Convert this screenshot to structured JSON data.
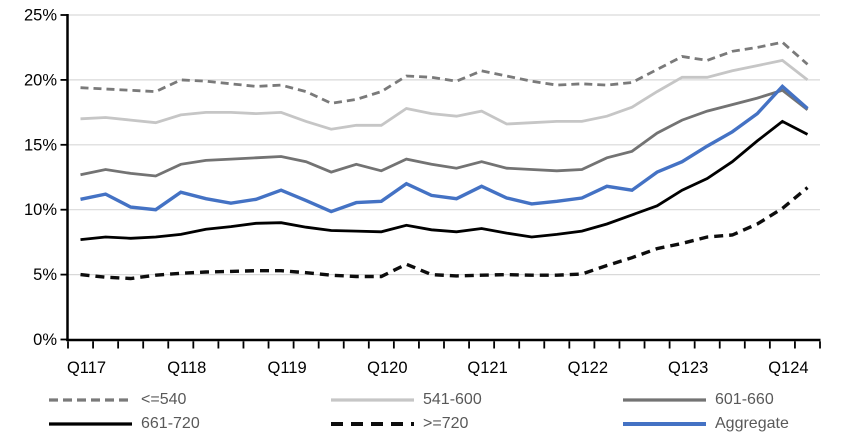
{
  "chart_data": {
    "type": "line",
    "title": "",
    "xlabel": "",
    "ylabel": "",
    "ylim": [
      0,
      25
    ],
    "grid": "horizontal",
    "legend_position": "bottom",
    "y_ticks": [
      "0%",
      "5%",
      "10%",
      "15%",
      "20%",
      "25%"
    ],
    "x_axis_labels": [
      "Q117",
      "Q118",
      "Q119",
      "Q120",
      "Q121",
      "Q122",
      "Q123",
      "Q124"
    ],
    "categories": [
      "Q117",
      "Q217",
      "Q317",
      "Q417",
      "Q118",
      "Q218",
      "Q318",
      "Q418",
      "Q119",
      "Q219",
      "Q319",
      "Q419",
      "Q120",
      "Q220",
      "Q320",
      "Q420",
      "Q121",
      "Q221",
      "Q321",
      "Q421",
      "Q122",
      "Q222",
      "Q322",
      "Q422",
      "Q123",
      "Q223",
      "Q323",
      "Q423",
      "Q124",
      "Q224"
    ],
    "series": [
      {
        "name": "<=540",
        "color": "#7a7a7a",
        "dash": "8 5",
        "width": 2.8,
        "legend_dash": "9 5",
        "values": [
          19.4,
          19.3,
          19.2,
          19.1,
          20.0,
          19.9,
          19.7,
          19.5,
          19.6,
          19.1,
          18.2,
          18.5,
          19.1,
          20.3,
          20.2,
          19.9,
          20.7,
          20.3,
          19.9,
          19.6,
          19.7,
          19.6,
          19.8,
          20.8,
          21.8,
          21.5,
          22.2,
          22.5,
          22.9,
          21.2
        ]
      },
      {
        "name": "541-600",
        "color": "#c6c6c6",
        "dash": "",
        "width": 2.8,
        "legend_dash": "",
        "values": [
          17.0,
          17.1,
          16.9,
          16.7,
          17.3,
          17.5,
          17.5,
          17.4,
          17.5,
          16.8,
          16.2,
          16.5,
          16.5,
          17.8,
          17.4,
          17.2,
          17.6,
          16.6,
          16.7,
          16.8,
          16.8,
          17.2,
          17.9,
          19.1,
          20.2,
          20.2,
          20.7,
          21.1,
          21.5,
          20.0
        ]
      },
      {
        "name": "601-660",
        "color": "#737373",
        "dash": "",
        "width": 2.8,
        "legend_dash": "",
        "values": [
          12.7,
          13.1,
          12.8,
          12.6,
          13.5,
          13.8,
          13.9,
          14.0,
          14.1,
          13.7,
          12.9,
          13.5,
          13.0,
          13.9,
          13.5,
          13.2,
          13.7,
          13.2,
          13.1,
          13.0,
          13.1,
          14.0,
          14.5,
          15.9,
          16.9,
          17.6,
          18.1,
          18.6,
          19.2,
          17.7
        ]
      },
      {
        "name": "661-720",
        "color": "#000000",
        "dash": "",
        "width": 2.8,
        "legend_dash": "",
        "values": [
          7.7,
          7.9,
          7.8,
          7.9,
          8.1,
          8.5,
          8.7,
          8.95,
          9.0,
          8.65,
          8.4,
          8.35,
          8.3,
          8.8,
          8.45,
          8.3,
          8.55,
          8.2,
          7.9,
          8.1,
          8.35,
          8.9,
          9.6,
          10.3,
          11.5,
          12.4,
          13.7,
          15.3,
          16.8,
          15.8
        ]
      },
      {
        "name": ">=720",
        "color": "#0d0d0d",
        "dash": "9 6",
        "width": 3.4,
        "legend_dash": "12 8",
        "values": [
          5.0,
          4.8,
          4.7,
          4.95,
          5.1,
          5.2,
          5.25,
          5.3,
          5.3,
          5.15,
          4.95,
          4.85,
          4.85,
          5.8,
          5.0,
          4.9,
          4.95,
          5.0,
          4.95,
          4.95,
          5.05,
          5.7,
          6.3,
          7.0,
          7.4,
          7.9,
          8.05,
          8.9,
          10.1,
          11.7
        ]
      },
      {
        "name": "Aggregate",
        "color": "#4472c4",
        "dash": "",
        "width": 3.4,
        "legend_dash": "",
        "values": [
          10.8,
          11.2,
          10.2,
          10.0,
          11.35,
          10.85,
          10.5,
          10.8,
          11.5,
          10.7,
          9.85,
          10.55,
          10.65,
          12.0,
          11.1,
          10.85,
          11.8,
          10.9,
          10.45,
          10.65,
          10.9,
          11.8,
          11.5,
          12.9,
          13.7,
          14.9,
          16.0,
          17.4,
          19.5,
          17.8
        ]
      }
    ],
    "colors": {
      "grid": "#d9d9d9",
      "axis": "#000000",
      "axis_label": "#000000",
      "legend_text": "#595959",
      "background": "#ffffff"
    }
  }
}
